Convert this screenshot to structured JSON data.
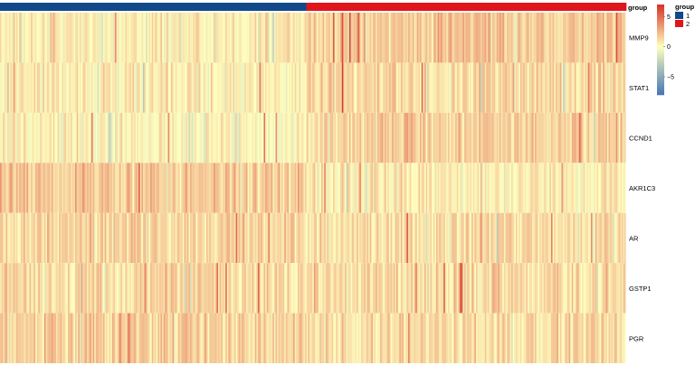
{
  "chart_data": {
    "type": "heatmap",
    "annotation": {
      "name": "group",
      "groups": [
        {
          "label": "1",
          "color": "#12498a",
          "samples": 208
        },
        {
          "label": "2",
          "color": "#e0151b",
          "samples": 217
        }
      ]
    },
    "rows": [
      "MMP9",
      "STAT1",
      "CCND1",
      "AKR1C3",
      "AR",
      "GSTP1",
      "PGR"
    ],
    "row_profiles": [
      {
        "gene": "MMP9",
        "group1_mean": 0.5,
        "group2_mean": 1.8
      },
      {
        "gene": "STAT1",
        "group1_mean": 0.6,
        "group2_mean": 1.4
      },
      {
        "gene": "CCND1",
        "group1_mean": 0.2,
        "group2_mean": 1.6
      },
      {
        "gene": "AKR1C3",
        "group1_mean": 1.8,
        "group2_mean": 0.5
      },
      {
        "gene": "AR",
        "group1_mean": 1.3,
        "group2_mean": 1.1
      },
      {
        "gene": "GSTP1",
        "group1_mean": 1.3,
        "group2_mean": 1.2
      },
      {
        "gene": "PGR",
        "group1_mean": 1.6,
        "group2_mean": 1.1
      }
    ],
    "color_scale": {
      "low": "#4575b4",
      "mid": "#ffffbf",
      "high": "#d73027",
      "range": [
        -8,
        7
      ],
      "ticks": [
        5,
        0,
        -5
      ]
    },
    "legend": {
      "placement": "right",
      "group_title": "group",
      "entries": [
        {
          "label": "1",
          "color": "#12498a"
        },
        {
          "label": "2",
          "color": "#e0151b"
        }
      ]
    }
  }
}
